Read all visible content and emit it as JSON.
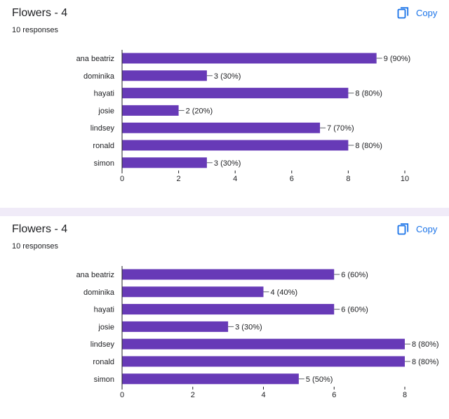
{
  "copy_label": "Copy",
  "copy_icon": "copy-icon",
  "colors": {
    "bar": "#673ab7",
    "accent": "#1a73e8",
    "axis": "#202124",
    "separator": "#f0ebf8"
  },
  "chart_data": [
    {
      "type": "bar",
      "orientation": "horizontal",
      "title": "Flowers - 4",
      "subtitle": "10 responses",
      "categories": [
        "ana beatriz",
        "dominika",
        "hayati",
        "josie",
        "lindsey",
        "ronald",
        "simon"
      ],
      "values": [
        9,
        3,
        8,
        2,
        7,
        8,
        3
      ],
      "labels": [
        "9 (90%)",
        "3 (30%)",
        "8 (80%)",
        "2 (20%)",
        "7 (70%)",
        "8 (80%)",
        "3 (30%)"
      ],
      "xlim": [
        0,
        10
      ],
      "xticks": [
        0,
        2,
        4,
        6,
        8,
        10
      ],
      "grid": false
    },
    {
      "type": "bar",
      "orientation": "horizontal",
      "title": "Flowers - 4",
      "subtitle": "10 responses",
      "categories": [
        "ana beatriz",
        "dominika",
        "hayati",
        "josie",
        "lindsey",
        "ronald",
        "simon"
      ],
      "values": [
        6,
        4,
        6,
        3,
        8,
        8,
        5
      ],
      "labels": [
        "6 (60%)",
        "4 (40%)",
        "6 (60%)",
        "3 (30%)",
        "8 (80%)",
        "8 (80%)",
        "5 (50%)"
      ],
      "xlim": [
        0,
        8
      ],
      "xticks": [
        0,
        2,
        4,
        6,
        8
      ],
      "grid": false
    }
  ]
}
